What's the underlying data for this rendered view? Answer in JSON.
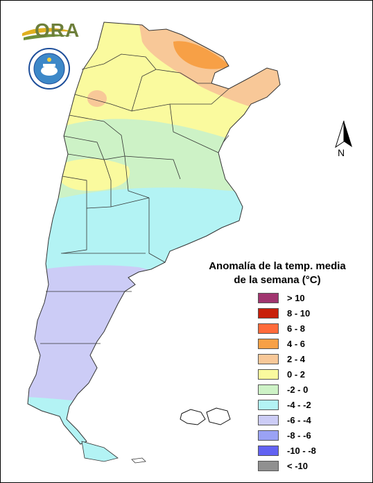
{
  "logos": {
    "ora_text": "ORA"
  },
  "north_arrow": {
    "label": "N"
  },
  "legend": {
    "title_line1": "Anomalía de la temp. media",
    "title_line2": "de la semana (°C)",
    "items": [
      {
        "label": "> 10",
        "color": "#a0356f"
      },
      {
        "label": "8 - 10",
        "color": "#c8200a"
      },
      {
        "label": "6 - 8",
        "color": "#ff6a3a"
      },
      {
        "label": "4 - 6",
        "color": "#f7a046"
      },
      {
        "label": "2 - 4",
        "color": "#f8c898"
      },
      {
        "label": "0 - 2",
        "color": "#fafa9e"
      },
      {
        "label": "-2 - 0",
        "color": "#cdf2c6"
      },
      {
        "label": "-4 - -2",
        "color": "#b3f3f4"
      },
      {
        "label": "-6 - -4",
        "color": "#ccccf6"
      },
      {
        "label": "-8 - -6",
        "color": "#9aa2f4"
      },
      {
        "label": "-10 - -8",
        "color": "#6262f2"
      },
      {
        "label": "< -10",
        "color": "#909090"
      }
    ]
  }
}
